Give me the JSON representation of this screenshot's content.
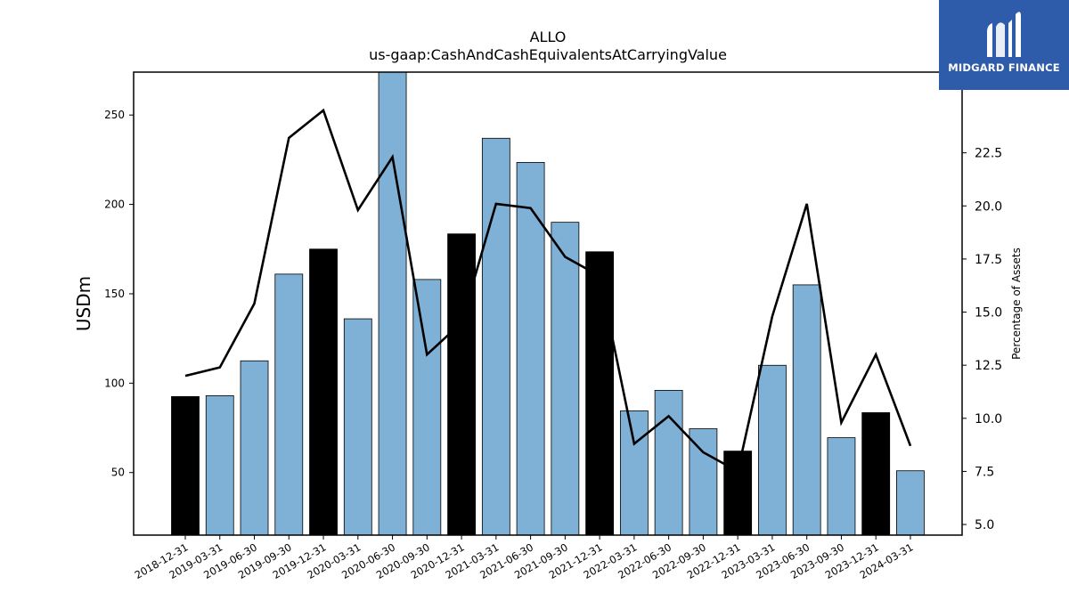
{
  "brand": {
    "name": "MIDGARD FINANCE",
    "color": "#2f5bab"
  },
  "chart_data": {
    "type": "bar",
    "title": "ALLO",
    "subtitle": "us-gaap:CashAndCashEquivalentsAtCarryingValue",
    "ylabel": "USDm",
    "y2label": "Percentage of Assets",
    "ylim": [
      15,
      274
    ],
    "y2lim": [
      4.5,
      26.3
    ],
    "yticks": [
      50,
      100,
      150,
      200,
      250
    ],
    "y2ticks": [
      "5.0",
      "7.5",
      "10.0",
      "12.5",
      "15.0",
      "17.5",
      "20.0",
      "22.5"
    ],
    "grid": false,
    "categories": [
      "2018-12-31",
      "2019-03-31",
      "2019-06-30",
      "2019-09-30",
      "2019-12-31",
      "2020-03-31",
      "2020-06-30",
      "2020-09-30",
      "2020-12-31",
      "2021-03-31",
      "2021-06-30",
      "2021-09-30",
      "2021-12-31",
      "2022-03-31",
      "2022-06-30",
      "2022-09-30",
      "2022-12-31",
      "2023-03-31",
      "2023-06-30",
      "2023-09-30",
      "2023-12-31",
      "2024-03-31"
    ],
    "values": [
      92.5,
      93,
      112.5,
      161,
      175,
      136,
      275,
      158,
      183.5,
      237,
      223.5,
      190,
      173.5,
      84.5,
      96,
      74.5,
      62,
      110,
      155,
      69.5,
      83.5,
      51
    ],
    "percent_of_assets": [
      12.0,
      12.4,
      15.4,
      23.2,
      24.5,
      19.8,
      22.3,
      13.0,
      14.5,
      20.1,
      19.9,
      17.6,
      16.7,
      8.8,
      10.1,
      8.4,
      7.5,
      14.8,
      20.1,
      9.8,
      13.0,
      8.7
    ],
    "year_end": [
      true,
      false,
      false,
      false,
      true,
      false,
      false,
      false,
      true,
      false,
      false,
      false,
      true,
      false,
      false,
      false,
      true,
      false,
      false,
      false,
      true,
      false
    ],
    "colors": {
      "bar": "#7fb0d5",
      "year_end_bar": "#000000",
      "line": "#000000"
    }
  }
}
